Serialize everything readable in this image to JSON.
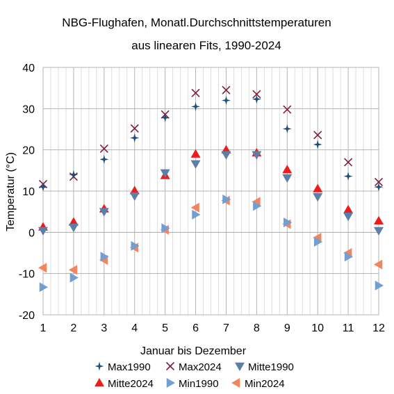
{
  "chart_data": {
    "type": "scatter",
    "title": "NBG-Flughafen, Monatl.Durchschnittstemperaturen",
    "subtitle": "aus linearen Fits, 1990-2024",
    "xlabel": "Januar bis Dezember",
    "ylabel": "Temperatur (°C)",
    "xlim": [
      1,
      12
    ],
    "ylim": [
      -20,
      40
    ],
    "x_ticks": [
      1,
      2,
      3,
      4,
      5,
      6,
      7,
      8,
      9,
      10,
      11,
      12
    ],
    "y_ticks": [
      -20,
      -10,
      0,
      10,
      20,
      30,
      40
    ],
    "grid": true,
    "legend_position": "bottom",
    "x": [
      1,
      2,
      3,
      4,
      5,
      6,
      7,
      8,
      9,
      10,
      11,
      12
    ],
    "series": [
      {
        "name": "Max1990",
        "marker": "star",
        "color": "#1f4e79",
        "values": [
          11.0,
          14.0,
          17.7,
          22.9,
          27.8,
          30.5,
          32.0,
          32.3,
          25.1,
          21.3,
          13.6,
          11.0
        ]
      },
      {
        "name": "Max2024",
        "marker": "x",
        "color": "#7b1f3a",
        "values": [
          11.7,
          13.5,
          20.3,
          25.2,
          28.6,
          33.8,
          34.5,
          33.5,
          29.8,
          23.6,
          17.0,
          12.2
        ]
      },
      {
        "name": "Mitte1990",
        "marker": "triangle-down",
        "color": "#5b7fa6",
        "values": [
          0.4,
          1.2,
          5.0,
          8.8,
          14.4,
          16.6,
          18.8,
          18.8,
          13.2,
          8.6,
          3.9,
          0.4
        ]
      },
      {
        "name": "Mitte2024",
        "marker": "triangle-up",
        "color": "#ee1c1c",
        "values": [
          1.3,
          2.5,
          5.7,
          10.1,
          13.8,
          19.0,
          20.0,
          19.3,
          15.2,
          10.6,
          5.5,
          2.8
        ]
      },
      {
        "name": "Min1990",
        "marker": "triangle-right",
        "color": "#729fcf",
        "values": [
          -13.3,
          -11.0,
          -5.9,
          -3.3,
          1.0,
          4.3,
          8.0,
          6.4,
          2.4,
          -2.3,
          -5.9,
          -12.9
        ]
      },
      {
        "name": "Min2024",
        "marker": "triangle-left",
        "color": "#f4845f",
        "values": [
          -8.6,
          -9.1,
          -6.7,
          -3.7,
          0.6,
          6.0,
          7.7,
          7.4,
          2.0,
          -1.3,
          -5.0,
          -7.8
        ]
      }
    ]
  }
}
